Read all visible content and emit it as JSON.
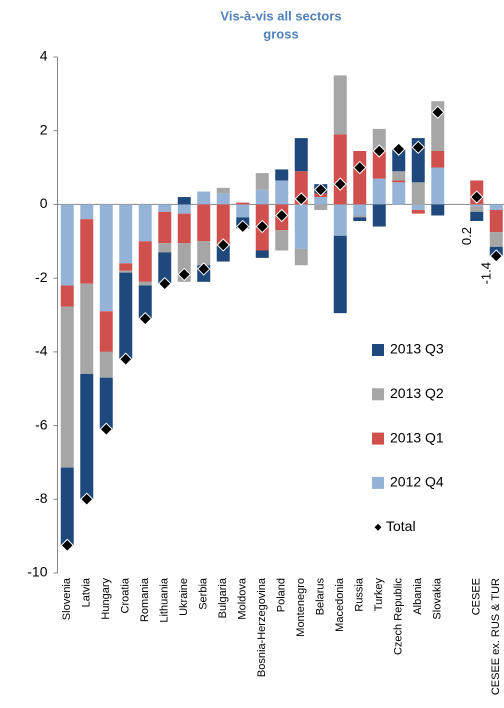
{
  "chart_data": {
    "type": "bar",
    "stacked": true,
    "title": "Vis-à-vis all sectors",
    "subtitle": "gross",
    "categories": [
      "Slovenia",
      "Latvia",
      "Hungary",
      "Croatia",
      "Romania",
      "Lithuania",
      "Ukraine",
      "Serbia",
      "Bulgaria",
      "Moldova",
      "Bosnia-Herzegovina",
      "Poland",
      "Montenegro",
      "Belarus",
      "Macedonia",
      "Russia",
      "Turkey",
      "Czech Republic",
      "Albania",
      "Slovakia",
      null,
      "CESEE",
      "CESEE ex. RUS & TUR"
    ],
    "series": [
      {
        "name": "2012 Q4",
        "color": "#95b3d7",
        "values": [
          -2.2,
          -0.4,
          -2.9,
          -1.6,
          -1.0,
          -0.2,
          -0.25,
          0.35,
          0.3,
          -0.35,
          0.4,
          0.65,
          -1.2,
          0.2,
          -0.85,
          -0.3,
          0.7,
          0.6,
          -0.15,
          1.0,
          null,
          -0.05,
          -0.15
        ]
      },
      {
        "name": "2013 Q1",
        "color": "#d0504d",
        "values": [
          -0.57,
          -1.75,
          -1.1,
          -0.2,
          -1.1,
          -0.85,
          -0.8,
          -1.0,
          -1.1,
          0.05,
          -1.25,
          -0.7,
          0.9,
          0.1,
          1.9,
          1.45,
          0.8,
          0.05,
          -0.1,
          0.45,
          null,
          0.65,
          -0.6
        ]
      },
      {
        "name": "2013 Q2",
        "color": "#a6a6a6",
        "values": [
          -4.37,
          -2.45,
          -0.7,
          -0.05,
          -0.1,
          -0.25,
          -1.05,
          -0.65,
          0.15,
          0,
          0.45,
          -0.55,
          -0.45,
          -0.15,
          1.6,
          -0.05,
          0.55,
          0.25,
          0.6,
          1.35,
          null,
          -0.15,
          -0.4
        ]
      },
      {
        "name": "2013 Q3",
        "color": "#1f497d",
        "values": [
          -2.1,
          -3.4,
          -1.4,
          -2.35,
          -0.9,
          -0.85,
          0.2,
          -0.45,
          -0.45,
          -0.3,
          -0.2,
          0.3,
          0.9,
          0.25,
          -2.1,
          -0.1,
          -0.6,
          0.6,
          1.2,
          -0.3,
          null,
          -0.25,
          -0.25
        ]
      },
      {
        "name": "Total",
        "color": "#000000",
        "kind": "marker",
        "values": [
          -9.25,
          -8.0,
          -6.1,
          -4.2,
          -3.1,
          -2.15,
          -1.9,
          -1.75,
          -1.1,
          -0.6,
          -0.6,
          -0.3,
          0.15,
          0.4,
          0.55,
          1.0,
          1.45,
          1.5,
          1.55,
          2.5,
          null,
          0.2,
          -1.4
        ],
        "value_labels": [
          null,
          null,
          null,
          null,
          null,
          null,
          null,
          null,
          null,
          null,
          null,
          null,
          null,
          null,
          null,
          null,
          null,
          null,
          null,
          null,
          null,
          "0.2",
          "-1.4"
        ]
      }
    ],
    "ylim": [
      -10,
      4
    ],
    "yticks": [
      -10,
      -8,
      -6,
      -4,
      -2,
      0,
      2,
      4
    ],
    "grid": false,
    "legend_position": "right"
  }
}
